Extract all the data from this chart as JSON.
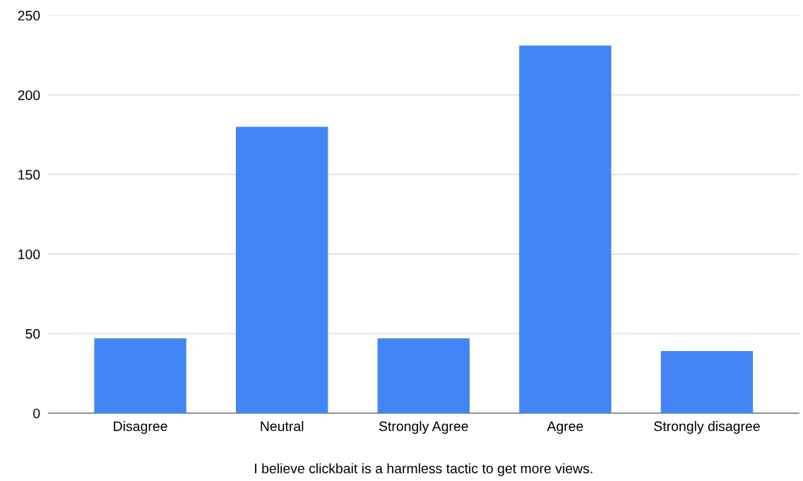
{
  "chart_data": {
    "type": "bar",
    "categories": [
      "Disagree",
      "Neutral",
      "Strongly Agree",
      "Agree",
      "Strongly disagree"
    ],
    "values": [
      47,
      180,
      47,
      231,
      39
    ],
    "color": "#4285f4",
    "xlabel": "I believe clickbait is a harmless tactic to get more views.",
    "ylim": [
      0,
      250
    ],
    "yticks": [
      0,
      50,
      100,
      150,
      200,
      250
    ],
    "grid": "y",
    "legend": false
  }
}
